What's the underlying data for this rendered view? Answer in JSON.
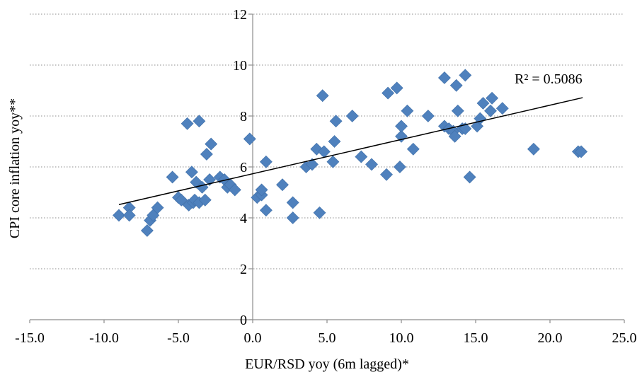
{
  "chart_data": {
    "type": "scatter",
    "xlabel": "EUR/RSD yoy (6m lagged)*",
    "ylabel": "CPI core inflation yoy**",
    "xlim": [
      -15,
      25
    ],
    "ylim": [
      0,
      12
    ],
    "x_ticks": [
      -15,
      -10,
      -5,
      0,
      5,
      10,
      15,
      20,
      25
    ],
    "x_tick_labels": [
      "-15.0",
      "-10.0",
      "-5.0",
      "0.0",
      "5.0",
      "10.0",
      "15.0",
      "20.0",
      "25.0"
    ],
    "y_ticks": [
      0,
      2,
      4,
      6,
      8,
      10,
      12
    ],
    "y_tick_labels": [
      "0",
      "2",
      "4",
      "6",
      "8",
      "10",
      "12"
    ],
    "grid": "horizontal-dotted",
    "marker": "diamond",
    "marker_color": "#4f81bd",
    "trendline": {
      "type": "linear",
      "x_range": [
        -9.0,
        22.2
      ],
      "y_start": 4.52,
      "y_end": 8.72,
      "color": "#000000",
      "r_squared_label": "R² = 0.5086"
    },
    "points": [
      [
        -9.0,
        4.1
      ],
      [
        -8.3,
        4.4
      ],
      [
        -8.3,
        4.1
      ],
      [
        -7.1,
        3.5
      ],
      [
        -6.9,
        3.9
      ],
      [
        -6.7,
        4.1
      ],
      [
        -6.4,
        4.4
      ],
      [
        -5.4,
        5.6
      ],
      [
        -5.0,
        4.8
      ],
      [
        -4.8,
        4.7
      ],
      [
        -4.4,
        7.7
      ],
      [
        -4.3,
        4.5
      ],
      [
        -4.1,
        5.8
      ],
      [
        -4.0,
        4.6
      ],
      [
        -3.9,
        4.7
      ],
      [
        -3.8,
        5.4
      ],
      [
        -3.6,
        7.8
      ],
      [
        -3.6,
        4.6
      ],
      [
        -3.4,
        5.2
      ],
      [
        -3.2,
        4.7
      ],
      [
        -3.1,
        6.5
      ],
      [
        -2.9,
        5.5
      ],
      [
        -2.8,
        6.9
      ],
      [
        -2.2,
        5.6
      ],
      [
        -1.9,
        5.5
      ],
      [
        -1.7,
        5.2
      ],
      [
        -1.5,
        5.3
      ],
      [
        -1.2,
        5.1
      ],
      [
        -0.2,
        7.1
      ],
      [
        0.3,
        4.8
      ],
      [
        0.6,
        4.9
      ],
      [
        0.6,
        5.1
      ],
      [
        0.9,
        6.2
      ],
      [
        0.9,
        4.3
      ],
      [
        2.0,
        5.3
      ],
      [
        2.7,
        4.6
      ],
      [
        2.7,
        4.0
      ],
      [
        3.6,
        6.0
      ],
      [
        4.0,
        6.1
      ],
      [
        4.3,
        6.7
      ],
      [
        4.5,
        4.2
      ],
      [
        4.7,
        8.8
      ],
      [
        4.8,
        6.6
      ],
      [
        5.4,
        6.2
      ],
      [
        5.5,
        7.0
      ],
      [
        5.6,
        7.8
      ],
      [
        6.7,
        8.0
      ],
      [
        7.3,
        6.4
      ],
      [
        8.0,
        6.1
      ],
      [
        9.0,
        5.7
      ],
      [
        9.1,
        8.9
      ],
      [
        9.7,
        9.1
      ],
      [
        9.9,
        6.0
      ],
      [
        10.0,
        7.2
      ],
      [
        10.0,
        7.6
      ],
      [
        10.4,
        8.2
      ],
      [
        10.8,
        6.7
      ],
      [
        11.8,
        8.0
      ],
      [
        12.9,
        7.6
      ],
      [
        12.9,
        9.5
      ],
      [
        13.2,
        7.5
      ],
      [
        13.5,
        7.4
      ],
      [
        13.6,
        7.2
      ],
      [
        13.7,
        9.2
      ],
      [
        13.8,
        8.2
      ],
      [
        14.1,
        7.5
      ],
      [
        14.3,
        9.6
      ],
      [
        14.3,
        7.5
      ],
      [
        14.6,
        5.6
      ],
      [
        15.1,
        7.6
      ],
      [
        15.3,
        7.9
      ],
      [
        15.5,
        8.5
      ],
      [
        16.0,
        8.2
      ],
      [
        16.1,
        8.7
      ],
      [
        16.8,
        8.3
      ],
      [
        18.9,
        6.7
      ],
      [
        21.9,
        6.6
      ],
      [
        22.1,
        6.6
      ]
    ]
  }
}
